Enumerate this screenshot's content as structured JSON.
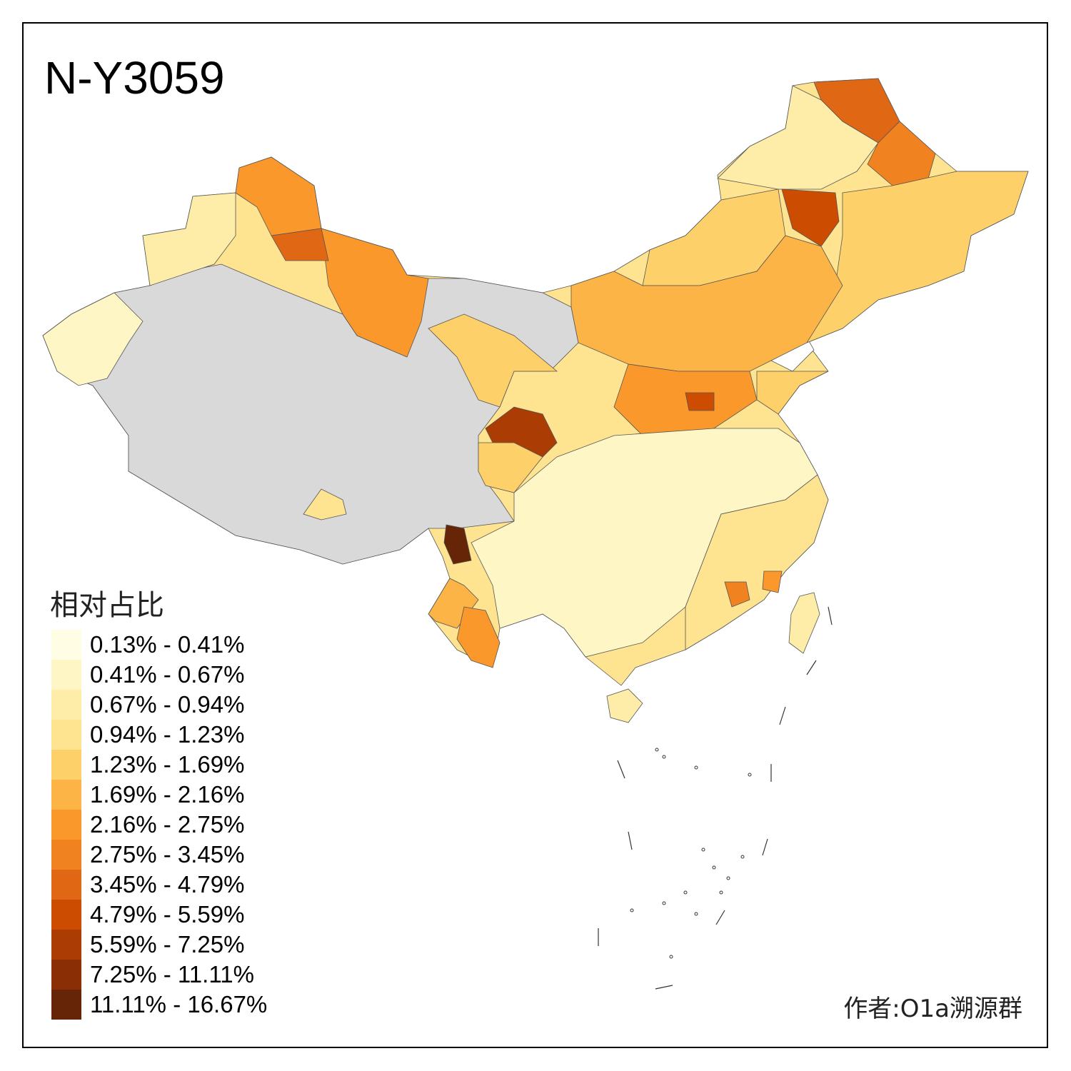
{
  "title": "N-Y3059",
  "legend": {
    "title": "相对占比",
    "bins": [
      {
        "label": "0.13% - 0.41%",
        "color": "#FFFDE4"
      },
      {
        "label": "0.41% - 0.67%",
        "color": "#FFF6C6"
      },
      {
        "label": "0.67% - 0.94%",
        "color": "#FEEDA8"
      },
      {
        "label": "0.94% - 1.23%",
        "color": "#FEE391"
      },
      {
        "label": "1.23% - 1.69%",
        "color": "#FED06A"
      },
      {
        "label": "1.69% - 2.16%",
        "color": "#FDB446"
      },
      {
        "label": "2.16% - 2.75%",
        "color": "#FB982C"
      },
      {
        "label": "2.75% - 3.45%",
        "color": "#F08220"
      },
      {
        "label": "3.45% - 4.79%",
        "color": "#E06814"
      },
      {
        "label": "4.79% - 5.59%",
        "color": "#CC4C02"
      },
      {
        "label": "5.59% - 7.25%",
        "color": "#AA3C04"
      },
      {
        "label": "7.25% - 11.11%",
        "color": "#8A2F05"
      },
      {
        "label": "11.11% - 16.67%",
        "color": "#662506"
      }
    ]
  },
  "no_data_color": "#D9D9D9",
  "regions": [
    {
      "id": "northeast-north",
      "bin": 8
    },
    {
      "id": "hulunbuir",
      "bin": 2
    },
    {
      "id": "heilongjiang-east",
      "bin": 7
    },
    {
      "id": "jilin-liaoning",
      "bin": 4
    },
    {
      "id": "inner-mongolia-central",
      "bin": 4
    },
    {
      "id": "chifeng",
      "bin": 9
    },
    {
      "id": "chengde",
      "bin": 10
    },
    {
      "id": "north-china",
      "bin": 5
    },
    {
      "id": "shanxi-shaanxi",
      "bin": 6
    },
    {
      "id": "xinjiang-north",
      "bin": 6
    },
    {
      "id": "xinjiang-west",
      "bin": 2
    },
    {
      "id": "xinjiang-east",
      "bin": 6
    },
    {
      "id": "xinjiang-central",
      "bin": 8
    },
    {
      "id": "kashgar",
      "bin": 1
    },
    {
      "id": "gansu-qinghai-edge",
      "bin": 4
    },
    {
      "id": "gannan",
      "bin": 10
    },
    {
      "id": "sichuan-west",
      "bin": 4
    },
    {
      "id": "south-china",
      "bin": 1
    },
    {
      "id": "southeast-coast",
      "bin": 3
    },
    {
      "id": "yunnan-northwest",
      "bin": 12
    },
    {
      "id": "yunnan-south",
      "bin": 5
    },
    {
      "id": "xishuangbanna",
      "bin": 6
    },
    {
      "id": "tibet-south",
      "bin": 3
    },
    {
      "id": "fujian-city",
      "bin": 7
    },
    {
      "id": "jiangxi-city",
      "bin": 6
    },
    {
      "id": "henan-city",
      "bin": 9
    },
    {
      "id": "taiwan",
      "bin": 2
    },
    {
      "id": "hainan",
      "bin": 2
    },
    {
      "id": "shandong",
      "bin": 4
    }
  ],
  "credit": "作者:O1a溯源群"
}
